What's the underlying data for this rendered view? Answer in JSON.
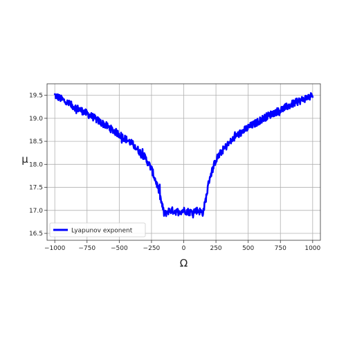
{
  "chart_data": {
    "type": "line",
    "title": "",
    "xlabel": "Ω",
    "ylabel": "μ",
    "xlim": [
      -1060,
      1060
    ],
    "ylim": [
      16.35,
      19.75
    ],
    "xticks": [
      -1000,
      -750,
      -500,
      -250,
      0,
      250,
      500,
      750,
      1000
    ],
    "xtick_labels": [
      "−1000",
      "−750",
      "−500",
      "−250",
      "0",
      "250",
      "500",
      "750",
      "1000"
    ],
    "yticks": [
      16.5,
      17.0,
      17.5,
      18.0,
      18.5,
      19.0,
      19.5
    ],
    "ytick_labels": [
      "16.5",
      "17.0",
      "17.5",
      "18.0",
      "18.5",
      "19.0",
      "19.5"
    ],
    "grid": true,
    "legend": {
      "position": "lower-left",
      "entries": [
        "Lyapunov exponent"
      ]
    },
    "series": [
      {
        "name": "Lyapunov exponent",
        "color": "#0000ff",
        "noise_amplitude": 0.08,
        "points": [
          [
            -1000,
            19.5
          ],
          [
            -950,
            19.42
          ],
          [
            -900,
            19.33
          ],
          [
            -850,
            19.25
          ],
          [
            -800,
            19.18
          ],
          [
            -750,
            19.1
          ],
          [
            -700,
            19.02
          ],
          [
            -650,
            18.92
          ],
          [
            -600,
            18.84
          ],
          [
            -550,
            18.74
          ],
          [
            -500,
            18.65
          ],
          [
            -450,
            18.55
          ],
          [
            -400,
            18.45
          ],
          [
            -350,
            18.3
          ],
          [
            -300,
            18.15
          ],
          [
            -250,
            17.9
          ],
          [
            -200,
            17.5
          ],
          [
            -175,
            17.2
          ],
          [
            -150,
            16.9
          ],
          [
            -125,
            16.98
          ],
          [
            -100,
            17.0
          ],
          [
            -50,
            16.97
          ],
          [
            0,
            17.0
          ],
          [
            50,
            16.96
          ],
          [
            100,
            17.0
          ],
          [
            125,
            16.98
          ],
          [
            150,
            16.95
          ],
          [
            175,
            17.3
          ],
          [
            200,
            17.7
          ],
          [
            250,
            18.1
          ],
          [
            300,
            18.3
          ],
          [
            350,
            18.45
          ],
          [
            400,
            18.6
          ],
          [
            450,
            18.7
          ],
          [
            500,
            18.8
          ],
          [
            550,
            18.88
          ],
          [
            600,
            18.97
          ],
          [
            650,
            19.05
          ],
          [
            700,
            19.12
          ],
          [
            750,
            19.18
          ],
          [
            800,
            19.25
          ],
          [
            850,
            19.32
          ],
          [
            900,
            19.38
          ],
          [
            950,
            19.44
          ],
          [
            1000,
            19.5
          ]
        ]
      }
    ]
  }
}
